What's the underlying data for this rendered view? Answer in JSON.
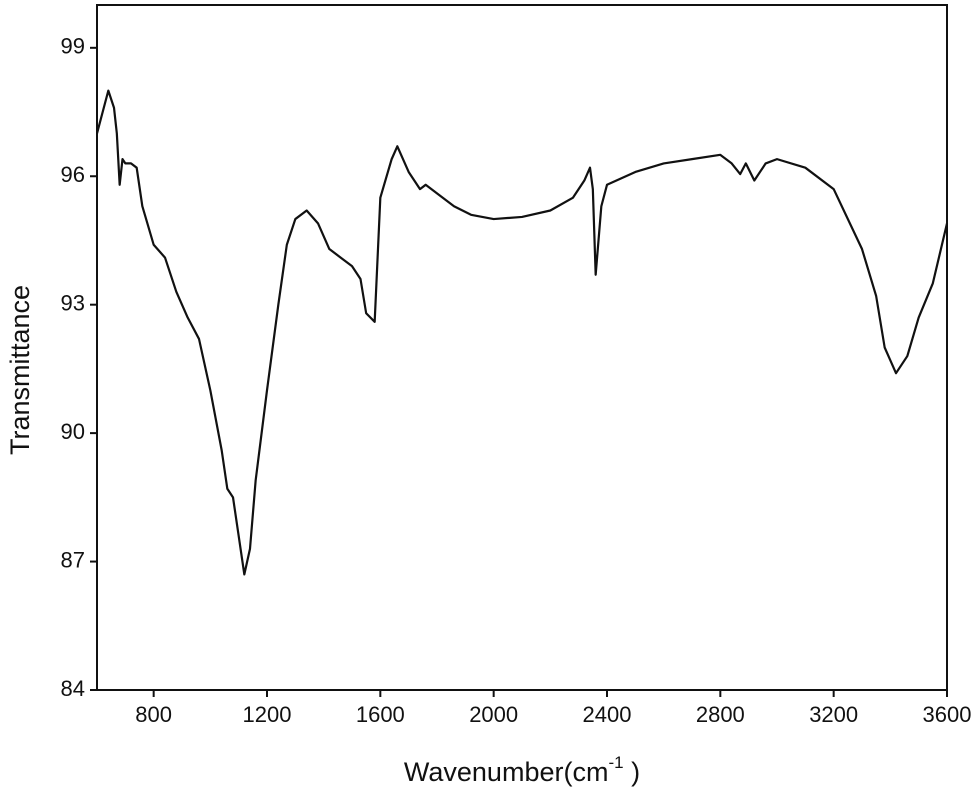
{
  "chart_data": {
    "type": "line",
    "xlabel_parts": [
      "Wavenumber(cm",
      "-1",
      " )"
    ],
    "ylabel": "Transmittance",
    "xlim": [
      600,
      3600
    ],
    "ylim": [
      84,
      100
    ],
    "xticks": [
      800,
      1200,
      1600,
      2000,
      2400,
      2800,
      3200,
      3600
    ],
    "yticks": [
      84,
      87,
      90,
      93,
      96,
      99
    ],
    "series": [
      {
        "color": "#111111",
        "x": [
          600,
          620,
          640,
          660,
          670,
          680,
          690,
          700,
          720,
          740,
          760,
          800,
          840,
          880,
          920,
          960,
          1000,
          1040,
          1060,
          1080,
          1100,
          1120,
          1140,
          1160,
          1200,
          1240,
          1270,
          1300,
          1340,
          1380,
          1420,
          1460,
          1500,
          1530,
          1550,
          1580,
          1600,
          1640,
          1660,
          1700,
          1740,
          1760,
          1800,
          1860,
          1920,
          2000,
          2100,
          2200,
          2280,
          2320,
          2340,
          2350,
          2360,
          2380,
          2400,
          2500,
          2600,
          2700,
          2800,
          2840,
          2870,
          2890,
          2920,
          2960,
          3000,
          3100,
          3200,
          3300,
          3350,
          3380,
          3420,
          3460,
          3500,
          3550,
          3600
        ],
        "values": [
          97.0,
          97.5,
          98.0,
          97.6,
          97.0,
          95.8,
          96.4,
          96.3,
          96.3,
          96.2,
          95.3,
          94.4,
          94.1,
          93.3,
          92.7,
          92.2,
          91.0,
          89.6,
          88.7,
          88.5,
          87.6,
          86.7,
          87.3,
          88.9,
          91.0,
          93.0,
          94.4,
          95.0,
          95.2,
          94.9,
          94.3,
          94.1,
          93.9,
          93.6,
          92.8,
          92.6,
          95.5,
          96.4,
          96.7,
          96.1,
          95.7,
          95.8,
          95.6,
          95.3,
          95.1,
          95.0,
          95.05,
          95.2,
          95.5,
          95.9,
          96.2,
          95.7,
          93.7,
          95.3,
          95.8,
          96.1,
          96.3,
          96.4,
          96.5,
          96.3,
          96.05,
          96.3,
          95.9,
          96.3,
          96.4,
          96.2,
          95.7,
          94.3,
          93.2,
          92.0,
          91.4,
          91.8,
          92.7,
          93.5,
          94.9
        ]
      }
    ]
  }
}
